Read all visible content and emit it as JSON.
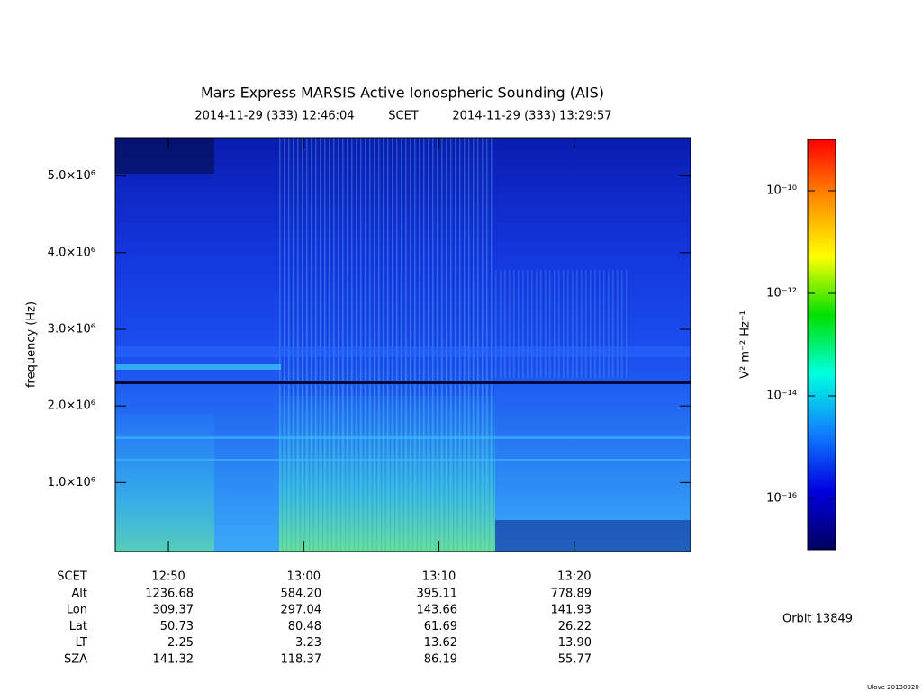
{
  "chart_data": {
    "type": "spectrogram",
    "title": "Mars Express MARSIS Active Ionospheric Sounding (AIS)",
    "time_start": "2014-11-29 (333) 12:46:04",
    "time_label": "SCET",
    "time_end": "2014-11-29 (333) 13:29:57",
    "y_label": "frequency (Hz)",
    "ylim": [
      100000,
      5500000
    ],
    "yticks": [
      {
        "value": 1000000,
        "label": "1.0×10⁶"
      },
      {
        "value": 2000000,
        "label": "2.0×10⁶"
      },
      {
        "value": 3000000,
        "label": "3.0×10⁶"
      },
      {
        "value": 4000000,
        "label": "4.0×10⁶"
      },
      {
        "value": 5000000,
        "label": "5.0×10⁶"
      }
    ],
    "xlim": [
      766.07,
      808.6
    ],
    "xticks": [
      {
        "value": 770,
        "label": "12:50"
      },
      {
        "value": 780,
        "label": "13:00"
      },
      {
        "value": 790,
        "label": "13:10"
      },
      {
        "value": 800,
        "label": "13:20"
      }
    ],
    "colorbar": {
      "label": "V² m⁻² Hz⁻¹",
      "scale": "log",
      "zlim": [
        1e-17,
        1e-09
      ],
      "zticks": [
        {
          "value": 1e-10,
          "label": "10⁻¹⁰"
        },
        {
          "value": 1e-12,
          "label": "10⁻¹²"
        },
        {
          "value": 1e-14,
          "label": "10⁻¹⁴"
        },
        {
          "value": 1e-16,
          "label": "10⁻¹⁶"
        }
      ],
      "colors": [
        "#ff0000",
        "#ff8c00",
        "#ffff00",
        "#00e000",
        "#00ffe0",
        "#1080ff",
        "#0000e0",
        "#000060"
      ]
    },
    "ephemeris": {
      "header": "SCET",
      "rows": [
        {
          "label": "Alt",
          "values": [
            "1236.68",
            "584.20",
            "395.11",
            "778.89"
          ]
        },
        {
          "label": "Lon",
          "values": [
            "309.37",
            "297.04",
            "143.66",
            "141.93"
          ]
        },
        {
          "label": "Lat",
          "values": [
            "50.73",
            "80.48",
            "61.69",
            "26.22"
          ]
        },
        {
          "label": "LT",
          "values": [
            "2.25",
            "3.23",
            "13.62",
            "13.90"
          ]
        },
        {
          "label": "SZA",
          "values": [
            "141.32",
            "118.37",
            "86.19",
            "55.77"
          ]
        }
      ]
    },
    "orbit": "Orbit 13849",
    "footer": "Ulove 20130920"
  }
}
